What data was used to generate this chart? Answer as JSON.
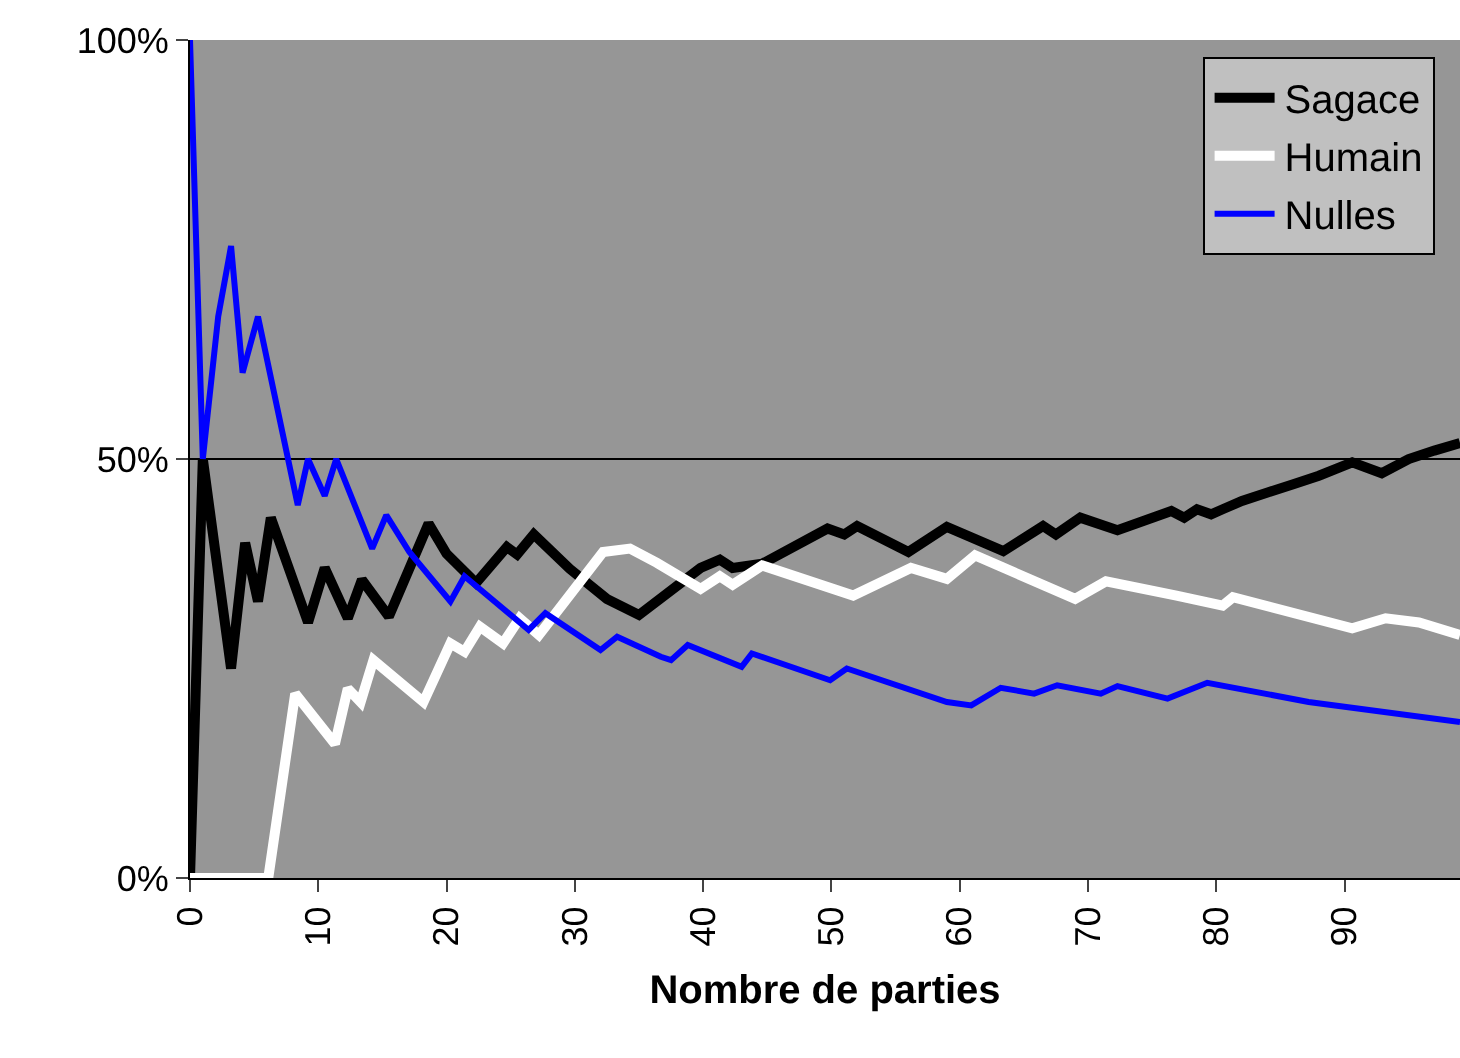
{
  "chart_data": {
    "type": "line",
    "xlabel": "Nombre de parties",
    "xlim": [
      0,
      99
    ],
    "ylim": [
      0,
      100
    ],
    "xticks": [
      0,
      10,
      20,
      30,
      40,
      50,
      60,
      70,
      80,
      90
    ],
    "yticks": [
      {
        "value": 0,
        "label": "0%"
      },
      {
        "value": 50,
        "label": "50%"
      },
      {
        "value": 100,
        "label": "100%"
      }
    ],
    "grid": "y",
    "legend": "top right",
    "marker": "none",
    "line_style": "solid",
    "series": [
      {
        "name": "Sagace",
        "color": "#000000",
        "x": [
          0,
          1,
          3.2,
          4.3,
          5.3,
          6.3,
          9.2,
          10.5,
          12.3,
          13.4,
          15.5,
          18.6,
          20,
          22.3,
          24.7,
          25.5,
          26.8,
          29.6,
          32.5,
          35,
          39.8,
          41.3,
          42.3,
          44.6,
          49.7,
          51,
          52,
          56,
          59,
          63.4,
          66.5,
          67.5,
          69.4,
          72.3,
          76.5,
          77.5,
          78.5,
          79.6,
          80.5,
          82,
          84,
          86,
          88,
          90.6,
          92.9,
          95,
          97,
          99
        ],
        "values": [
          0,
          50,
          25,
          40,
          33,
          43,
          30.5,
          37,
          31,
          35.6,
          31.2,
          42.3,
          38.7,
          35.2,
          39.5,
          38.6,
          41,
          36.9,
          33.3,
          31.4,
          37,
          38,
          37,
          37.5,
          41.7,
          41,
          42,
          38.9,
          41.9,
          39,
          42,
          41,
          43,
          41.5,
          43.8,
          43,
          44,
          43.4,
          44,
          45,
          46,
          47,
          48,
          49.6,
          48.3,
          50,
          51,
          51.9
        ]
      },
      {
        "name": "Humain",
        "color": "#ffffff",
        "x": [
          0,
          6.1,
          8.2,
          11.3,
          12.3,
          13.3,
          14.3,
          18.2,
          20.3,
          21.4,
          22.6,
          24.4,
          25.7,
          27.2,
          32.2,
          34.3,
          36.4,
          39.8,
          41.3,
          42.3,
          44.6,
          51.7,
          56.2,
          59,
          61.2,
          69,
          71.4,
          76.9,
          80.5,
          81.3,
          90.6,
          93.2,
          95.8,
          99
        ],
        "values": [
          0,
          0,
          22,
          16,
          22.6,
          21,
          26,
          21,
          28,
          27,
          30,
          28,
          31,
          29,
          38.9,
          39.3,
          37.6,
          34.5,
          36,
          35,
          37.3,
          33.7,
          37,
          35.7,
          38.5,
          33.3,
          35.4,
          33.7,
          32.5,
          33.5,
          29.8,
          31,
          30.5,
          29
        ]
      },
      {
        "name": "Nulles",
        "color": "#0000ff",
        "x": [
          0,
          1,
          2.2,
          3.2,
          4.1,
          5.3,
          8.4,
          9.2,
          10.5,
          11.4,
          14.2,
          15.3,
          17.1,
          20.3,
          21.4,
          26.4,
          27.7,
          32,
          33.3,
          36.7,
          37.5,
          38.8,
          43,
          43.8,
          49.9,
          51.2,
          59,
          60.9,
          63.2,
          65.8,
          67.6,
          71,
          72.3,
          76.2,
          79.3,
          87.2,
          99
        ],
        "values": [
          100,
          50,
          67,
          75.4,
          60.3,
          67,
          44.5,
          50,
          45.6,
          50,
          39.3,
          43.3,
          38.9,
          33,
          36,
          29.6,
          31.6,
          27.2,
          28.8,
          26.4,
          26,
          27.8,
          25.2,
          26.8,
          23.6,
          25,
          21,
          20.6,
          22.7,
          22,
          23,
          22,
          22.9,
          21.4,
          23.3,
          21,
          18.6
        ]
      }
    ]
  }
}
